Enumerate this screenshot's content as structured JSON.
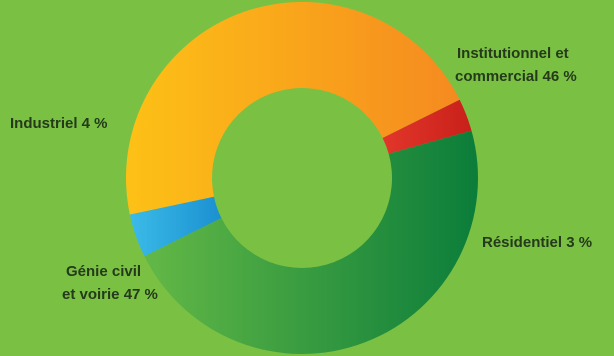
{
  "chart_data": {
    "type": "pie",
    "title": "",
    "categories": [
      "Institutionnel et commercial",
      "Résidentiel",
      "Génie civil et voirie",
      "Industriel"
    ],
    "values": [
      46,
      3,
      47,
      4
    ],
    "unit": "%",
    "colors": [
      "#f5a623",
      "#d42e1d",
      "#3aa241",
      "#2aa3dd"
    ],
    "labels": {
      "institutionnel_l1": "Institutionnel et",
      "institutionnel_l2": "commercial 46 %",
      "residentiel": "Résidentiel 3 %",
      "genie_l1": "Génie civil",
      "genie_l2": "et voirie 47 %",
      "industriel": "Industriel 4 %"
    },
    "legend": "none",
    "grid": false,
    "background": "#7ac143"
  }
}
